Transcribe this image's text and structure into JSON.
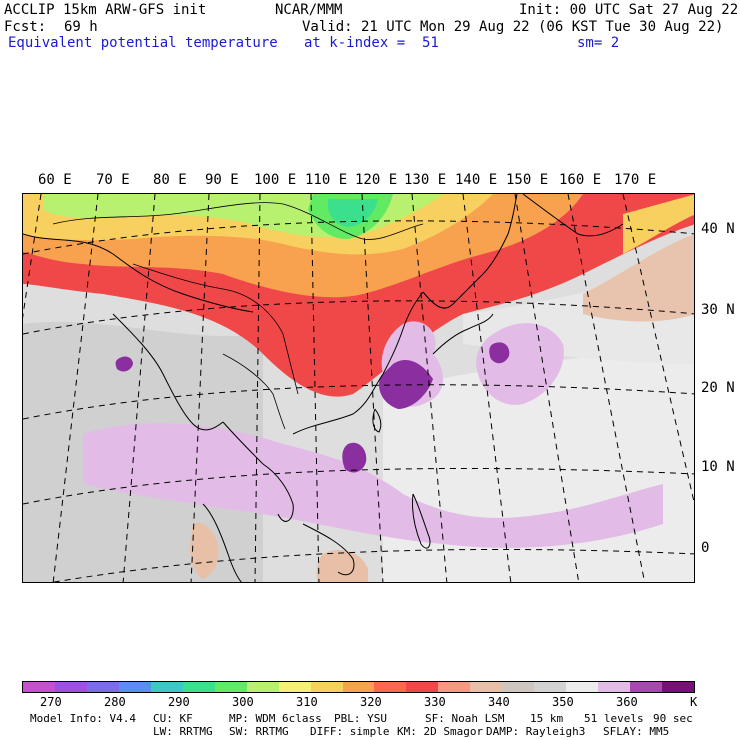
{
  "header": {
    "model": "ACCLIP 15km ARW-GFS init",
    "center": "NCAR/MMM",
    "init": "Init: 00 UTC Sat 27 Aug 22",
    "fcst_label": "Fcst:",
    "fcst_value": "69 h",
    "valid": "Valid: 21 UTC Mon 29 Aug 22 (06 KST Tue 30 Aug 22)",
    "field": "Equivalent potential temperature",
    "level": "at k-index =  51",
    "smooth": "sm= 2"
  },
  "map": {
    "lon_labels": [
      "60 E",
      "70 E",
      "80 E",
      "90 E",
      "100 E",
      "110 E",
      "120 E",
      "130 E",
      "140 E",
      "150 E",
      "160 E",
      "170 E"
    ],
    "lat_labels": [
      "40 N",
      "30 N",
      "20 N",
      "10 N",
      "0"
    ]
  },
  "colorbar": {
    "colors": [
      "#c84fd0",
      "#a050e0",
      "#7a6de6",
      "#5a8ef0",
      "#3fc6c6",
      "#3ce08c",
      "#62ea62",
      "#b8f070",
      "#f6f07a",
      "#f8d060",
      "#f8a250",
      "#f86a4a",
      "#f04848",
      "#f89880",
      "#e8c0a8",
      "#d0c6c0",
      "#d2d2d2",
      "#ececec",
      "#e2bce6",
      "#a848b0",
      "#7a0f7a"
    ],
    "labels": [
      "270",
      "280",
      "290",
      "300",
      "310",
      "320",
      "330",
      "340",
      "350",
      "360"
    ],
    "unit": "K"
  },
  "footer": {
    "line1": [
      "Model Info: V4.4",
      "CU: KF",
      "MP: WDM 6class",
      "PBL: YSU",
      "SF: Noah LSM",
      "15 km",
      "51 levels",
      "90 sec"
    ],
    "line2": [
      "LW: RRTMG",
      "SW: RRTMG",
      "DIFF: simple",
      "KM: 2D Smagor",
      "DAMP: Rayleigh3",
      "SFLAY: MM5"
    ]
  }
}
